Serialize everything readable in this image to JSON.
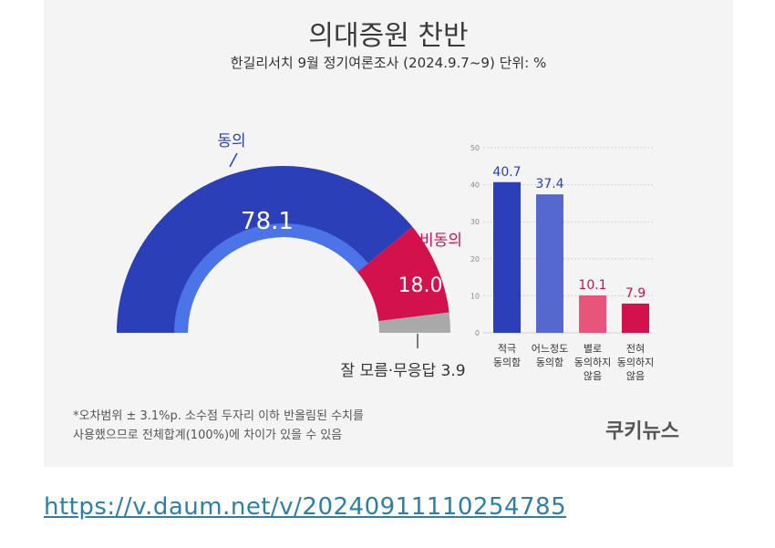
{
  "title": "의대증원 찬반",
  "subtitle": "한길리서치 9월 정기여론조사 (2024.9.7~9) 단위: %",
  "chart_data": [
    {
      "type": "pie",
      "style": "semi-donut",
      "slices": [
        {
          "label": "동의",
          "value": 78.1,
          "color": "#2b3fb8"
        },
        {
          "label": "비동의",
          "value": 18.0,
          "color": "#d3124d"
        },
        {
          "label": "잘 모름·무응답",
          "value": 3.9,
          "color": "#a9a9a9"
        }
      ],
      "value_labels": [
        "78.1",
        "18.0",
        "3.9"
      ],
      "inner_ring_color": "#4a74e8"
    },
    {
      "type": "bar",
      "categories": [
        [
          "적극",
          "동의함"
        ],
        [
          "어느정도",
          "동의함"
        ],
        [
          "별로",
          "동의하지",
          "않음"
        ],
        [
          "전혀",
          "동의하지",
          "않음"
        ]
      ],
      "values": [
        40.7,
        37.4,
        10.1,
        7.9
      ],
      "value_labels": [
        "40.7",
        "37.4",
        "10.1",
        "7.9"
      ],
      "colors": [
        "#2b3fb8",
        "#5468d0",
        "#e8557a",
        "#d3124d"
      ],
      "value_label_colors": [
        "#2b3fb8",
        "#2b3fb8",
        "#d3124d",
        "#d3124d"
      ],
      "ylim": [
        0,
        50
      ],
      "yticks": [
        "0",
        "10",
        "20",
        "30",
        "40",
        "50"
      ],
      "grid": true
    }
  ],
  "notes": [
    "*오차범위 ± 3.1%p. 소수점 두자리 이하 반올림된 수치를",
    "사용했으므로 전체합계(100%)에 차이가 있을 수 있음"
  ],
  "credit": "쿠키뉴스",
  "source_url": "https://v.daum.net/v/20240911110254785"
}
